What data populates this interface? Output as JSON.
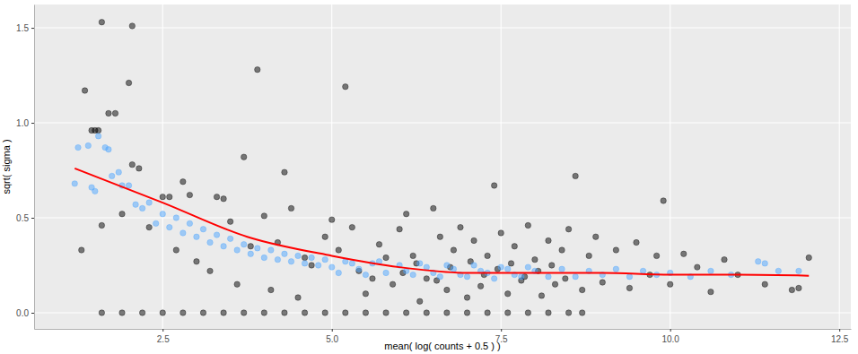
{
  "chart_data": {
    "type": "scatter",
    "x_label": "mean( log( counts + 0.5 ) )",
    "y_label": "sqrt( sigma )",
    "xlim": [
      0.6,
      12.67
    ],
    "ylim": [
      -0.085,
      1.623
    ],
    "xticks": [
      2.5,
      {
        "value": 5,
        "label": "5.0"
      },
      7.5,
      {
        "value": 10,
        "label": "10.0"
      },
      12.5
    ],
    "yticks": [
      {
        "value": 0,
        "label": "0.0"
      },
      0.5,
      {
        "value": 1,
        "label": "1.0"
      },
      1.5
    ],
    "grid": true,
    "series": [
      {
        "color": "#000000",
        "marker": "circle",
        "x": [
          1.6,
          2.05,
          1.35,
          2.0,
          3.9,
          5.2,
          1.45,
          1.5,
          1.55,
          1.7,
          1.8,
          2.05,
          2.15,
          3.7,
          4.3,
          1.3,
          1.6,
          1.9,
          2.5,
          2.6,
          2.8,
          2.9,
          3.3,
          3.4,
          8.6,
          9.9,
          7.4,
          6.1,
          6.5,
          4.4,
          4.0,
          5.0,
          2.3,
          2.7,
          3.0,
          3.2,
          3.5,
          3.6,
          4.1,
          4.5,
          4.7,
          4.9,
          5.3,
          5.5,
          5.7,
          5.9,
          6.0,
          6.2,
          6.3,
          6.4,
          6.6,
          6.7,
          6.8,
          6.9,
          7.0,
          7.1,
          7.2,
          7.3,
          7.5,
          7.6,
          7.7,
          7.8,
          7.9,
          8.0,
          8.1,
          8.2,
          8.3,
          8.4,
          8.5,
          8.7,
          8.8,
          8.9,
          9.0,
          9.2,
          9.4,
          9.5,
          9.7,
          9.8,
          10.0,
          10.2,
          10.4,
          10.6,
          10.8,
          11.0,
          11.4,
          11.8,
          11.9,
          12.05,
          5.1,
          5.4,
          5.6,
          5.8,
          6.05,
          6.25,
          6.55,
          6.75,
          7.05,
          7.25,
          7.45,
          7.65,
          7.85,
          8.05,
          8.25,
          8.45,
          4.2,
          4.6,
          3.8,
          1.6,
          1.9,
          2.2,
          2.5,
          2.8,
          3.1,
          3.4,
          3.7,
          4.0,
          4.3,
          4.6,
          4.9,
          5.2,
          5.5,
          5.8,
          6.1,
          6.4,
          6.7,
          7.0,
          7.3,
          7.6,
          7.9,
          8.2,
          8.5,
          8.7
        ],
        "values": [
          1.53,
          1.51,
          1.17,
          1.21,
          1.28,
          1.19,
          0.96,
          0.96,
          0.96,
          1.05,
          1.05,
          0.78,
          0.76,
          0.82,
          0.74,
          0.33,
          0.46,
          0.52,
          0.61,
          0.61,
          0.69,
          0.62,
          0.61,
          0.6,
          0.72,
          0.59,
          0.67,
          0.52,
          0.55,
          0.55,
          0.51,
          0.49,
          0.45,
          0.33,
          0.27,
          0.22,
          0.48,
          0.15,
          0.12,
          0.08,
          0.25,
          0.4,
          0.45,
          0.1,
          0.36,
          0.15,
          0.44,
          0.3,
          0.06,
          0.18,
          0.4,
          0.12,
          0.33,
          0.45,
          0.08,
          0.38,
          0.14,
          0.3,
          0.42,
          0.1,
          0.35,
          0.17,
          0.46,
          0.28,
          0.09,
          0.38,
          0.15,
          0.33,
          0.44,
          0.12,
          0.3,
          0.4,
          0.16,
          0.33,
          0.13,
          0.37,
          0.2,
          0.3,
          0.15,
          0.31,
          0.24,
          0.11,
          0.28,
          0.2,
          0.15,
          0.12,
          0.13,
          0.29,
          0.33,
          0.22,
          0.18,
          0.29,
          0.21,
          0.26,
          0.17,
          0.24,
          0.27,
          0.2,
          0.23,
          0.26,
          0.19,
          0.22,
          0.25,
          0.18,
          0.37,
          0.29,
          0.35,
          0,
          0,
          0,
          0,
          0,
          0,
          0,
          0,
          0,
          0,
          0,
          0,
          0,
          0,
          0,
          0,
          0,
          0,
          0,
          0,
          0,
          0,
          0,
          0,
          0
        ]
      },
      {
        "color": "#4da6ff",
        "marker": "circle",
        "x": [
          1.2,
          1.25,
          1.4,
          1.45,
          1.5,
          1.55,
          1.65,
          1.7,
          1.75,
          1.85,
          1.9,
          2.0,
          2.1,
          2.2,
          2.3,
          2.4,
          2.5,
          2.6,
          2.7,
          2.8,
          2.9,
          3.0,
          3.1,
          3.2,
          3.3,
          3.4,
          3.5,
          3.6,
          3.7,
          3.8,
          3.9,
          4.0,
          4.1,
          4.2,
          4.3,
          4.4,
          4.5,
          4.6,
          4.7,
          4.8,
          4.9,
          5.0,
          5.2,
          5.4,
          5.6,
          5.8,
          6.0,
          6.2,
          6.4,
          6.6,
          6.8,
          7.0,
          7.2,
          7.4,
          7.6,
          7.8,
          8.0,
          8.2,
          8.4,
          8.6,
          8.8,
          9.0,
          9.2,
          9.4,
          9.6,
          9.8,
          10.0,
          10.3,
          10.6,
          10.9,
          11.3,
          11.4,
          11.6,
          11.9,
          5.1,
          5.3,
          5.5,
          5.7,
          6.1,
          6.3,
          6.5,
          6.7,
          6.9,
          7.1,
          7.3,
          7.5,
          7.7,
          7.9
        ],
        "values": [
          0.68,
          0.87,
          0.88,
          0.66,
          0.64,
          0.93,
          0.87,
          0.86,
          0.72,
          0.74,
          0.67,
          0.67,
          0.57,
          0.55,
          0.58,
          0.47,
          0.52,
          0.45,
          0.5,
          0.42,
          0.47,
          0.4,
          0.44,
          0.37,
          0.41,
          0.35,
          0.39,
          0.33,
          0.36,
          0.31,
          0.34,
          0.29,
          0.33,
          0.28,
          0.31,
          0.27,
          0.3,
          0.26,
          0.29,
          0.25,
          0.28,
          0.24,
          0.27,
          0.23,
          0.26,
          0.21,
          0.25,
          0.2,
          0.24,
          0.19,
          0.23,
          0.19,
          0.22,
          0.18,
          0.23,
          0.19,
          0.22,
          0.19,
          0.23,
          0.19,
          0.22,
          0.2,
          0.23,
          0.19,
          0.22,
          0.2,
          0.21,
          0.19,
          0.22,
          0.2,
          0.27,
          0.26,
          0.22,
          0.22,
          0.21,
          0.26,
          0.2,
          0.27,
          0.22,
          0.26,
          0.21,
          0.25,
          0.2,
          0.25,
          0.21,
          0.24,
          0.2,
          0.24
        ]
      },
      {
        "type": "line",
        "color": "#ff0000",
        "x": [
          1.2,
          2.5,
          3.75,
          5,
          6,
          7,
          8,
          9,
          10,
          11,
          12.05
        ],
        "values": [
          0.76,
          0.58,
          0.4,
          0.3,
          0.24,
          0.21,
          0.21,
          0.21,
          0.2,
          0.2,
          0.195
        ]
      }
    ]
  }
}
